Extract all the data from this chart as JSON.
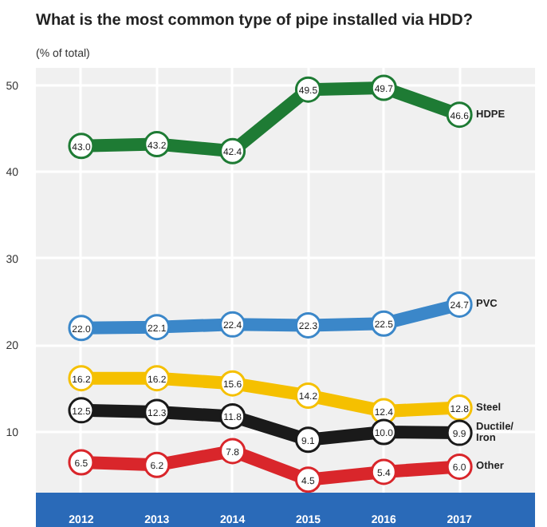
{
  "chart_data": {
    "type": "line",
    "title": "What is the most common type of pipe installed via HDD?",
    "subtitle": "(% of total)",
    "categories": [
      "2012",
      "2013",
      "2014",
      "2015",
      "2016",
      "2017"
    ],
    "series": [
      {
        "name": "HDPE",
        "color": "#1e7b34",
        "values": [
          43.0,
          43.2,
          42.4,
          49.5,
          49.7,
          46.6
        ],
        "value_labels": [
          "43.0",
          "43.2",
          "42.4",
          "49.5",
          "49.7",
          "46.6"
        ]
      },
      {
        "name": "PVC",
        "color": "#3b87c9",
        "values": [
          22.0,
          22.1,
          22.4,
          22.3,
          22.5,
          24.7
        ],
        "value_labels": [
          "22.0",
          "22.1",
          "22.4",
          "22.3",
          "22.5",
          "24.7"
        ]
      },
      {
        "name": "Steel",
        "color": "#f5c000",
        "values": [
          16.2,
          16.2,
          15.6,
          14.2,
          12.4,
          12.8
        ],
        "value_labels": [
          "16.2",
          "16.2",
          "15.6",
          "14.2",
          "12.4",
          "12.8"
        ]
      },
      {
        "name": "Ductile/ Iron",
        "color": "#1a1a1a",
        "values": [
          12.5,
          12.3,
          11.8,
          9.1,
          10.0,
          9.9
        ],
        "value_labels": [
          "12.5",
          "12.3",
          "11.8",
          "9.1",
          "10.0",
          "9.9"
        ]
      },
      {
        "name": "Other",
        "color": "#d9262b",
        "values": [
          6.5,
          6.2,
          7.8,
          4.5,
          5.4,
          6.0
        ],
        "value_labels": [
          "6.5",
          "6.2",
          "7.8",
          "4.5",
          "5.4",
          "6.0"
        ]
      }
    ],
    "ylim": [
      3,
      52
    ],
    "yticks": [
      10,
      20,
      30,
      40,
      50
    ],
    "grid": true,
    "legend": false,
    "marker": "circle",
    "line_style": "solid"
  }
}
